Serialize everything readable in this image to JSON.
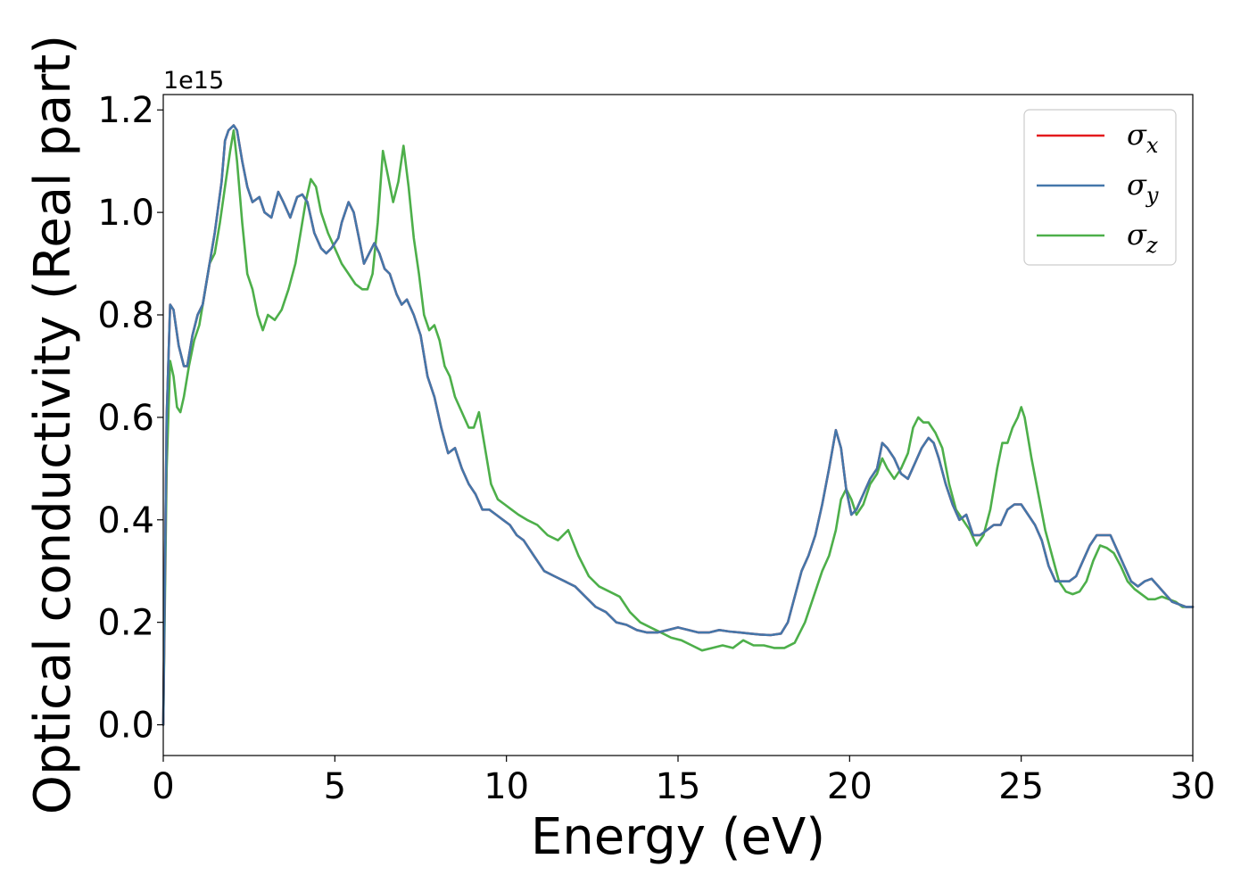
{
  "chart_data": {
    "type": "line",
    "xlabel": "Energy (eV)",
    "ylabel": "Optical conductivity (Real part)",
    "y_offset_label": "1e15",
    "xlim": [
      0,
      30
    ],
    "ylim": [
      -0.06,
      1.23
    ],
    "x_ticks": [
      "0",
      "5",
      "10",
      "15",
      "20",
      "25",
      "30"
    ],
    "y_ticks": [
      "0.0",
      "0.2",
      "0.4",
      "0.6",
      "0.8",
      "1.0",
      "1.2"
    ],
    "x_tick_values": [
      0,
      5,
      10,
      15,
      20,
      25,
      30
    ],
    "y_tick_values": [
      0.0,
      0.2,
      0.4,
      0.6,
      0.8,
      1.0,
      1.2
    ],
    "grid": false,
    "legend_position": "upper right",
    "series": [
      {
        "name": "σx",
        "legend_base": "σ",
        "legend_sub": "x",
        "color": "#e41a1c",
        "x": [
          0.0,
          0.1,
          0.2,
          0.3,
          0.45,
          0.6,
          0.7,
          0.85,
          1.0,
          1.15,
          1.3,
          1.5,
          1.7,
          1.8,
          1.9,
          2.05,
          2.15,
          2.3,
          2.45,
          2.6,
          2.8,
          2.95,
          3.15,
          3.35,
          3.5,
          3.7,
          3.9,
          4.05,
          4.2,
          4.4,
          4.6,
          4.75,
          4.9,
          5.1,
          5.2,
          5.4,
          5.55,
          5.7,
          5.85,
          6.0,
          6.15,
          6.3,
          6.45,
          6.6,
          6.8,
          6.95,
          7.1,
          7.3,
          7.5,
          7.7,
          7.9,
          8.1,
          8.3,
          8.5,
          8.7,
          8.9,
          9.1,
          9.3,
          9.5,
          9.7,
          9.9,
          10.1,
          10.3,
          10.5,
          10.8,
          11.1,
          11.4,
          11.7,
          12.0,
          12.3,
          12.6,
          12.9,
          13.2,
          13.5,
          13.8,
          14.1,
          14.4,
          14.7,
          15.0,
          15.3,
          15.6,
          15.9,
          16.2,
          16.5,
          16.8,
          17.1,
          17.4,
          17.7,
          18.0,
          18.2,
          18.4,
          18.6,
          18.8,
          19.0,
          19.2,
          19.4,
          19.6,
          19.75,
          19.9,
          20.05,
          20.2,
          20.4,
          20.6,
          20.8,
          20.95,
          21.1,
          21.3,
          21.5,
          21.7,
          21.9,
          22.1,
          22.3,
          22.45,
          22.6,
          22.8,
          23.0,
          23.2,
          23.4,
          23.6,
          23.8,
          24.0,
          24.2,
          24.4,
          24.6,
          24.8,
          25.0,
          25.2,
          25.4,
          25.6,
          25.8,
          26.0,
          26.2,
          26.4,
          26.6,
          26.8,
          27.0,
          27.2,
          27.4,
          27.6,
          27.8,
          28.0,
          28.2,
          28.4,
          28.6,
          28.8,
          29.0,
          29.2,
          29.4,
          29.6,
          29.8,
          30.0
        ],
        "y": [
          0.0,
          0.6,
          0.82,
          0.81,
          0.74,
          0.7,
          0.7,
          0.76,
          0.8,
          0.82,
          0.88,
          0.96,
          1.06,
          1.14,
          1.16,
          1.17,
          1.16,
          1.1,
          1.05,
          1.02,
          1.03,
          1.0,
          0.99,
          1.04,
          1.02,
          0.99,
          1.03,
          1.035,
          1.02,
          0.96,
          0.93,
          0.92,
          0.93,
          0.95,
          0.98,
          1.02,
          1.0,
          0.95,
          0.9,
          0.92,
          0.94,
          0.92,
          0.89,
          0.88,
          0.84,
          0.82,
          0.83,
          0.8,
          0.76,
          0.68,
          0.64,
          0.58,
          0.53,
          0.54,
          0.5,
          0.47,
          0.45,
          0.42,
          0.42,
          0.41,
          0.4,
          0.39,
          0.37,
          0.36,
          0.33,
          0.3,
          0.29,
          0.28,
          0.27,
          0.25,
          0.23,
          0.22,
          0.2,
          0.195,
          0.185,
          0.18,
          0.18,
          0.185,
          0.19,
          0.185,
          0.18,
          0.18,
          0.185,
          0.182,
          0.18,
          0.178,
          0.176,
          0.175,
          0.178,
          0.2,
          0.25,
          0.3,
          0.33,
          0.37,
          0.43,
          0.5,
          0.575,
          0.54,
          0.46,
          0.41,
          0.42,
          0.45,
          0.48,
          0.5,
          0.55,
          0.54,
          0.52,
          0.49,
          0.48,
          0.51,
          0.54,
          0.56,
          0.55,
          0.52,
          0.47,
          0.43,
          0.4,
          0.41,
          0.37,
          0.37,
          0.38,
          0.39,
          0.39,
          0.42,
          0.43,
          0.43,
          0.41,
          0.39,
          0.36,
          0.31,
          0.28,
          0.28,
          0.28,
          0.29,
          0.32,
          0.35,
          0.37,
          0.37,
          0.37,
          0.34,
          0.31,
          0.28,
          0.27,
          0.28,
          0.285,
          0.27,
          0.255,
          0.24,
          0.235,
          0.23,
          0.23
        ]
      },
      {
        "name": "σy",
        "legend_base": "σ",
        "legend_sub": "y",
        "color": "#4477aa",
        "x": [
          0.0,
          0.1,
          0.2,
          0.3,
          0.45,
          0.6,
          0.7,
          0.85,
          1.0,
          1.15,
          1.3,
          1.5,
          1.7,
          1.8,
          1.9,
          2.05,
          2.15,
          2.3,
          2.45,
          2.6,
          2.8,
          2.95,
          3.15,
          3.35,
          3.5,
          3.7,
          3.9,
          4.05,
          4.2,
          4.4,
          4.6,
          4.75,
          4.9,
          5.1,
          5.2,
          5.4,
          5.55,
          5.7,
          5.85,
          6.0,
          6.15,
          6.3,
          6.45,
          6.6,
          6.8,
          6.95,
          7.1,
          7.3,
          7.5,
          7.7,
          7.9,
          8.1,
          8.3,
          8.5,
          8.7,
          8.9,
          9.1,
          9.3,
          9.5,
          9.7,
          9.9,
          10.1,
          10.3,
          10.5,
          10.8,
          11.1,
          11.4,
          11.7,
          12.0,
          12.3,
          12.6,
          12.9,
          13.2,
          13.5,
          13.8,
          14.1,
          14.4,
          14.7,
          15.0,
          15.3,
          15.6,
          15.9,
          16.2,
          16.5,
          16.8,
          17.1,
          17.4,
          17.7,
          18.0,
          18.2,
          18.4,
          18.6,
          18.8,
          19.0,
          19.2,
          19.4,
          19.6,
          19.75,
          19.9,
          20.05,
          20.2,
          20.4,
          20.6,
          20.8,
          20.95,
          21.1,
          21.3,
          21.5,
          21.7,
          21.9,
          22.1,
          22.3,
          22.45,
          22.6,
          22.8,
          23.0,
          23.2,
          23.4,
          23.6,
          23.8,
          24.0,
          24.2,
          24.4,
          24.6,
          24.8,
          25.0,
          25.2,
          25.4,
          25.6,
          25.8,
          26.0,
          26.2,
          26.4,
          26.6,
          26.8,
          27.0,
          27.2,
          27.4,
          27.6,
          27.8,
          28.0,
          28.2,
          28.4,
          28.6,
          28.8,
          29.0,
          29.2,
          29.4,
          29.6,
          29.8,
          30.0
        ],
        "y": [
          0.0,
          0.6,
          0.82,
          0.81,
          0.74,
          0.7,
          0.7,
          0.76,
          0.8,
          0.82,
          0.88,
          0.96,
          1.06,
          1.14,
          1.16,
          1.17,
          1.16,
          1.1,
          1.05,
          1.02,
          1.03,
          1.0,
          0.99,
          1.04,
          1.02,
          0.99,
          1.03,
          1.035,
          1.02,
          0.96,
          0.93,
          0.92,
          0.93,
          0.95,
          0.98,
          1.02,
          1.0,
          0.95,
          0.9,
          0.92,
          0.94,
          0.92,
          0.89,
          0.88,
          0.84,
          0.82,
          0.83,
          0.8,
          0.76,
          0.68,
          0.64,
          0.58,
          0.53,
          0.54,
          0.5,
          0.47,
          0.45,
          0.42,
          0.42,
          0.41,
          0.4,
          0.39,
          0.37,
          0.36,
          0.33,
          0.3,
          0.29,
          0.28,
          0.27,
          0.25,
          0.23,
          0.22,
          0.2,
          0.195,
          0.185,
          0.18,
          0.18,
          0.185,
          0.19,
          0.185,
          0.18,
          0.18,
          0.185,
          0.182,
          0.18,
          0.178,
          0.176,
          0.175,
          0.178,
          0.2,
          0.25,
          0.3,
          0.33,
          0.37,
          0.43,
          0.5,
          0.575,
          0.54,
          0.46,
          0.41,
          0.42,
          0.45,
          0.48,
          0.5,
          0.55,
          0.54,
          0.52,
          0.49,
          0.48,
          0.51,
          0.54,
          0.56,
          0.55,
          0.52,
          0.47,
          0.43,
          0.4,
          0.41,
          0.37,
          0.37,
          0.38,
          0.39,
          0.39,
          0.42,
          0.43,
          0.43,
          0.41,
          0.39,
          0.36,
          0.31,
          0.28,
          0.28,
          0.28,
          0.29,
          0.32,
          0.35,
          0.37,
          0.37,
          0.37,
          0.34,
          0.31,
          0.28,
          0.27,
          0.28,
          0.285,
          0.27,
          0.255,
          0.24,
          0.235,
          0.23,
          0.23
        ]
      },
      {
        "name": "σz",
        "legend_base": "σ",
        "legend_sub": "z",
        "color": "#4daf4a",
        "x": [
          0.0,
          0.1,
          0.2,
          0.3,
          0.4,
          0.5,
          0.6,
          0.75,
          0.9,
          1.05,
          1.2,
          1.35,
          1.5,
          1.65,
          1.8,
          1.95,
          2.05,
          2.15,
          2.3,
          2.45,
          2.6,
          2.75,
          2.9,
          3.05,
          3.25,
          3.45,
          3.65,
          3.85,
          4.0,
          4.15,
          4.3,
          4.45,
          4.6,
          4.8,
          5.0,
          5.2,
          5.4,
          5.6,
          5.8,
          5.95,
          6.1,
          6.25,
          6.4,
          6.55,
          6.7,
          6.85,
          7.0,
          7.15,
          7.3,
          7.45,
          7.6,
          7.75,
          7.9,
          8.05,
          8.2,
          8.35,
          8.5,
          8.7,
          8.9,
          9.05,
          9.2,
          9.35,
          9.55,
          9.75,
          9.95,
          10.15,
          10.35,
          10.6,
          10.9,
          11.2,
          11.5,
          11.8,
          12.1,
          12.4,
          12.7,
          13.0,
          13.3,
          13.6,
          13.9,
          14.2,
          14.5,
          14.8,
          15.1,
          15.4,
          15.7,
          16.0,
          16.3,
          16.6,
          16.9,
          17.2,
          17.5,
          17.8,
          18.1,
          18.4,
          18.7,
          19.0,
          19.2,
          19.4,
          19.6,
          19.75,
          19.9,
          20.05,
          20.2,
          20.4,
          20.6,
          20.8,
          20.95,
          21.1,
          21.3,
          21.5,
          21.7,
          21.85,
          22.0,
          22.15,
          22.3,
          22.5,
          22.7,
          22.9,
          23.1,
          23.3,
          23.5,
          23.7,
          23.9,
          24.1,
          24.3,
          24.45,
          24.6,
          24.75,
          24.9,
          25.0,
          25.1,
          25.3,
          25.5,
          25.7,
          25.9,
          26.1,
          26.3,
          26.5,
          26.7,
          26.9,
          27.1,
          27.3,
          27.5,
          27.7,
          27.9,
          28.1,
          28.3,
          28.5,
          28.7,
          28.9,
          29.1,
          29.3,
          29.5,
          29.7,
          30.0
        ],
        "y": [
          0.0,
          0.5,
          0.71,
          0.68,
          0.62,
          0.61,
          0.64,
          0.7,
          0.75,
          0.78,
          0.84,
          0.9,
          0.92,
          0.98,
          1.05,
          1.12,
          1.16,
          1.1,
          0.98,
          0.88,
          0.85,
          0.8,
          0.77,
          0.8,
          0.79,
          0.81,
          0.85,
          0.9,
          0.96,
          1.02,
          1.065,
          1.05,
          1.0,
          0.96,
          0.93,
          0.9,
          0.88,
          0.86,
          0.85,
          0.85,
          0.88,
          0.98,
          1.12,
          1.07,
          1.02,
          1.06,
          1.13,
          1.05,
          0.95,
          0.88,
          0.8,
          0.77,
          0.78,
          0.75,
          0.7,
          0.68,
          0.64,
          0.61,
          0.58,
          0.58,
          0.61,
          0.55,
          0.47,
          0.44,
          0.43,
          0.42,
          0.41,
          0.4,
          0.39,
          0.37,
          0.36,
          0.38,
          0.33,
          0.29,
          0.27,
          0.26,
          0.25,
          0.22,
          0.2,
          0.19,
          0.18,
          0.17,
          0.165,
          0.155,
          0.145,
          0.15,
          0.155,
          0.15,
          0.165,
          0.155,
          0.155,
          0.15,
          0.15,
          0.16,
          0.2,
          0.26,
          0.3,
          0.33,
          0.38,
          0.44,
          0.46,
          0.44,
          0.41,
          0.43,
          0.47,
          0.49,
          0.52,
          0.5,
          0.48,
          0.5,
          0.53,
          0.58,
          0.6,
          0.59,
          0.59,
          0.57,
          0.54,
          0.47,
          0.42,
          0.4,
          0.38,
          0.35,
          0.37,
          0.42,
          0.5,
          0.55,
          0.55,
          0.58,
          0.6,
          0.62,
          0.6,
          0.52,
          0.45,
          0.38,
          0.33,
          0.28,
          0.26,
          0.255,
          0.26,
          0.28,
          0.32,
          0.35,
          0.345,
          0.335,
          0.31,
          0.28,
          0.265,
          0.255,
          0.245,
          0.245,
          0.25,
          0.245,
          0.24,
          0.23,
          0.23
        ]
      }
    ]
  }
}
